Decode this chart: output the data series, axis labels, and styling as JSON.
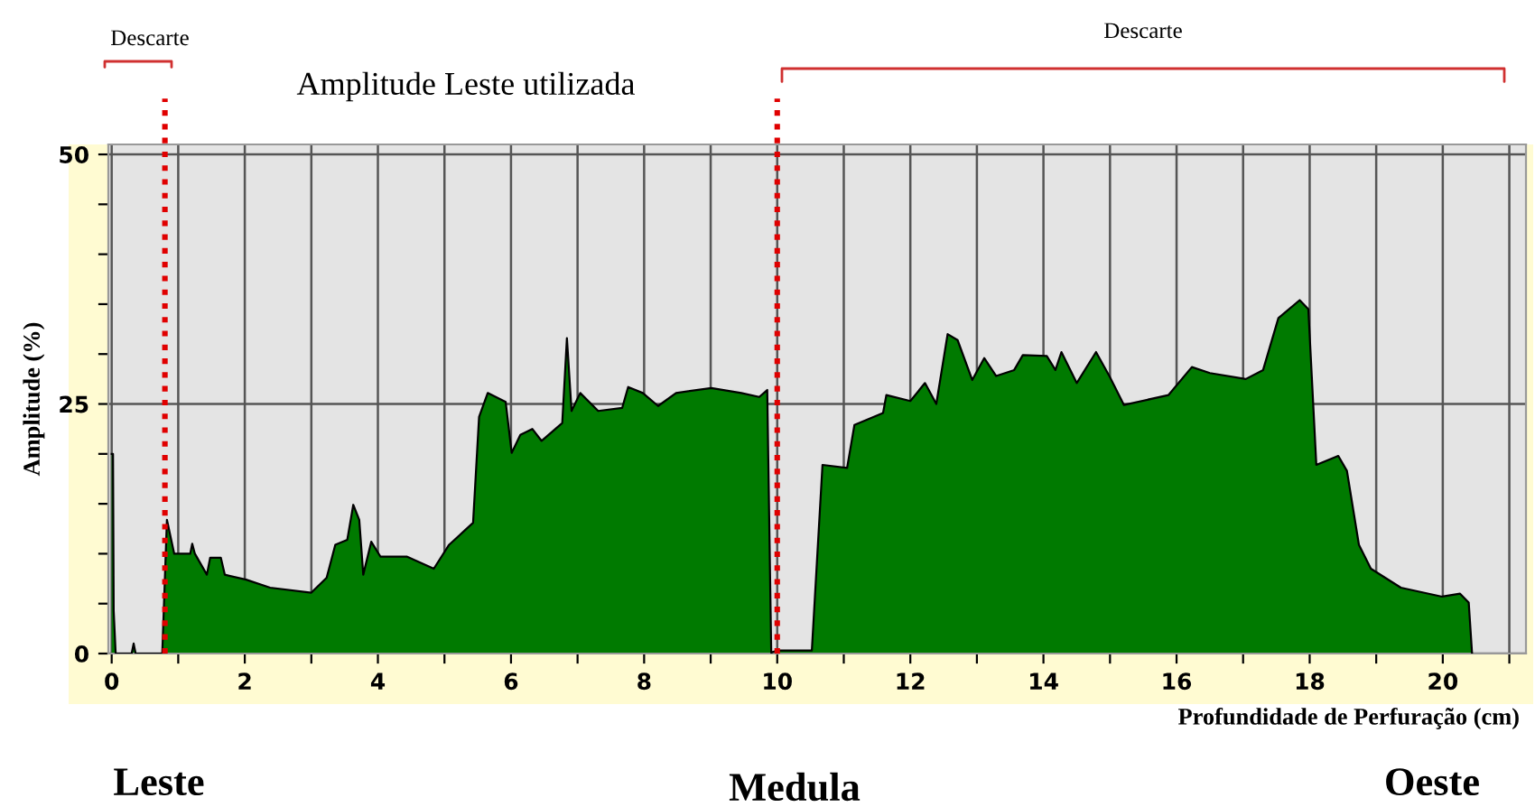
{
  "chart_data": {
    "type": "area",
    "xlabel": "Profundidade de Perfuração (cm)",
    "ylabel": "Amplitude (%)",
    "annotations": [
      "Descarte",
      "Amplitude Leste utilizada",
      "Descarte",
      "Leste",
      "Medula",
      "Oeste"
    ],
    "series": [
      {
        "color": "#007a00",
        "x": [
          0,
          0.02,
          0.03,
          0.06,
          0.3,
          0.33,
          0.36,
          0.76,
          0.83,
          0.94,
          1.18,
          1.21,
          1.25,
          1.43,
          1.48,
          1.64,
          1.7,
          2.02,
          2.38,
          3.0,
          3.23,
          3.36,
          3.54,
          3.63,
          3.72,
          3.78,
          3.9,
          4.04,
          4.44,
          4.84,
          5.07,
          5.43,
          5.52,
          5.65,
          5.92,
          6.01,
          6.14,
          6.32,
          6.46,
          6.77,
          6.84,
          6.91,
          7.04,
          7.31,
          7.67,
          7.76,
          7.98,
          8.21,
          8.48,
          9.01,
          9.46,
          9.73,
          9.85,
          9.91,
          10.0,
          10.52,
          10.68,
          11.05,
          11.16,
          11.59,
          11.64,
          12.0,
          12.22,
          12.39,
          12.56,
          12.71,
          12.93,
          13.11,
          13.29,
          13.56,
          13.69,
          14.05,
          14.18,
          14.27,
          14.5,
          14.79,
          14.99,
          15.21,
          15.88,
          16.23,
          16.5,
          17.04,
          17.3,
          17.53,
          17.85,
          17.98,
          18.1,
          18.43,
          18.56,
          18.74,
          18.92,
          19.37,
          19.99,
          20.26,
          20.39,
          20.44
        ],
        "values": [
          20,
          20,
          4.3,
          0,
          0,
          1,
          0,
          0,
          13.4,
          10,
          10,
          11,
          10,
          7.9,
          9.6,
          9.6,
          7.9,
          7.4,
          6.6,
          6.1,
          7.6,
          10.9,
          11.4,
          14.9,
          13.4,
          7.9,
          11.2,
          9.7,
          9.7,
          8.5,
          10.9,
          13.1,
          23.7,
          26.1,
          25.2,
          20.1,
          21.9,
          22.5,
          21.3,
          23.1,
          31.6,
          24.3,
          26.1,
          24.3,
          24.6,
          26.7,
          26.1,
          24.8,
          26.1,
          26.6,
          26.1,
          25.7,
          26.4,
          0.1,
          0.3,
          0.3,
          18.9,
          18.6,
          22.9,
          24.1,
          25.9,
          25.3,
          27.1,
          25.0,
          32.0,
          31.4,
          27.4,
          29.6,
          27.8,
          28.4,
          29.9,
          29.8,
          28.4,
          30.2,
          27.1,
          30.2,
          27.8,
          24.9,
          25.9,
          28.7,
          28.1,
          27.5,
          28.4,
          33.6,
          35.4,
          34.5,
          18.9,
          19.8,
          18.3,
          10.9,
          8.5,
          6.6,
          5.7,
          6.0,
          5.1,
          0
        ]
      }
    ],
    "xlim": [
      -0.05,
      21.25
    ],
    "ylim": [
      0,
      51
    ],
    "xticks": [
      0,
      {
        "value": 1,
        "label": null
      },
      2,
      {
        "value": 3,
        "label": null
      },
      4,
      {
        "value": 5,
        "label": null
      },
      6,
      {
        "value": 7,
        "label": null
      },
      8,
      {
        "value": 9,
        "label": null
      },
      10,
      {
        "value": 11,
        "label": null
      },
      12,
      {
        "value": 13,
        "label": null
      },
      14,
      {
        "value": 15,
        "label": null
      },
      16,
      {
        "value": 17,
        "label": null
      },
      18,
      {
        "value": 19,
        "label": null
      },
      20,
      {
        "value": 21,
        "label": null
      }
    ],
    "yticks": [
      0,
      {
        "value": 5,
        "label": null
      },
      {
        "value": 10,
        "label": null
      },
      {
        "value": 15,
        "label": null
      },
      {
        "value": 20,
        "label": null
      },
      25,
      {
        "value": 30,
        "label": null
      },
      {
        "value": 35,
        "label": null
      },
      {
        "value": 40,
        "label": null
      },
      {
        "value": 45,
        "label": null
      },
      50
    ],
    "ref_lines": [
      {
        "axis": "x",
        "value": 0.8,
        "color": "#e00000",
        "line_style": "dotted"
      },
      {
        "axis": "x",
        "value": 10,
        "color": "#e00000",
        "line_style": "dotted"
      }
    ],
    "grid": true
  }
}
